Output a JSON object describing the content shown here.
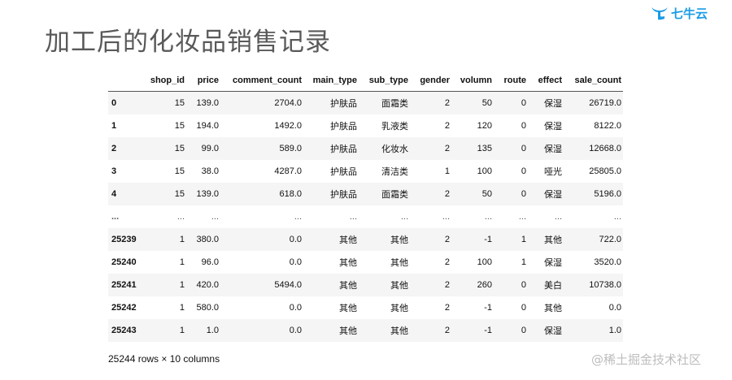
{
  "slide": {
    "title": "加工后的化妆品销售记录",
    "logo_text": "七牛云",
    "watermark": "@稀土掘金技术社区"
  },
  "table": {
    "columns": [
      "",
      "shop_id",
      "price",
      "comment_count",
      "main_type",
      "sub_type",
      "gender",
      "volumn",
      "route",
      "effect",
      "sale_count"
    ],
    "rows": [
      [
        "0",
        "15",
        "139.0",
        "2704.0",
        "护肤品",
        "面霜类",
        "2",
        "50",
        "0",
        "保湿",
        "26719.0"
      ],
      [
        "1",
        "15",
        "194.0",
        "1492.0",
        "护肤品",
        "乳液类",
        "2",
        "120",
        "0",
        "保湿",
        "8122.0"
      ],
      [
        "2",
        "15",
        "99.0",
        "589.0",
        "护肤品",
        "化妆水",
        "2",
        "135",
        "0",
        "保湿",
        "12668.0"
      ],
      [
        "3",
        "15",
        "38.0",
        "4287.0",
        "护肤品",
        "清洁类",
        "1",
        "100",
        "0",
        "哑光",
        "25805.0"
      ],
      [
        "4",
        "15",
        "139.0",
        "618.0",
        "护肤品",
        "面霜类",
        "2",
        "50",
        "0",
        "保湿",
        "5196.0"
      ],
      [
        "...",
        "...",
        "...",
        "...",
        "...",
        "...",
        "...",
        "...",
        "...",
        "...",
        "..."
      ],
      [
        "25239",
        "1",
        "380.0",
        "0.0",
        "其他",
        "其他",
        "2",
        "-1",
        "1",
        "其他",
        "722.0"
      ],
      [
        "25240",
        "1",
        "96.0",
        "0.0",
        "其他",
        "其他",
        "2",
        "100",
        "1",
        "保湿",
        "3520.0"
      ],
      [
        "25241",
        "1",
        "420.0",
        "5494.0",
        "其他",
        "其他",
        "2",
        "260",
        "0",
        "美白",
        "10738.0"
      ],
      [
        "25242",
        "1",
        "580.0",
        "0.0",
        "其他",
        "其他",
        "2",
        "-1",
        "0",
        "其他",
        "0.0"
      ],
      [
        "25243",
        "1",
        "1.0",
        "0.0",
        "其他",
        "其他",
        "2",
        "-1",
        "0",
        "保湿",
        "1.0"
      ]
    ],
    "shape_text": "25244 rows × 10 columns"
  },
  "colors": {
    "logo": "#1a9be6",
    "title": "#595959",
    "stripe": "#f5f5f5"
  }
}
